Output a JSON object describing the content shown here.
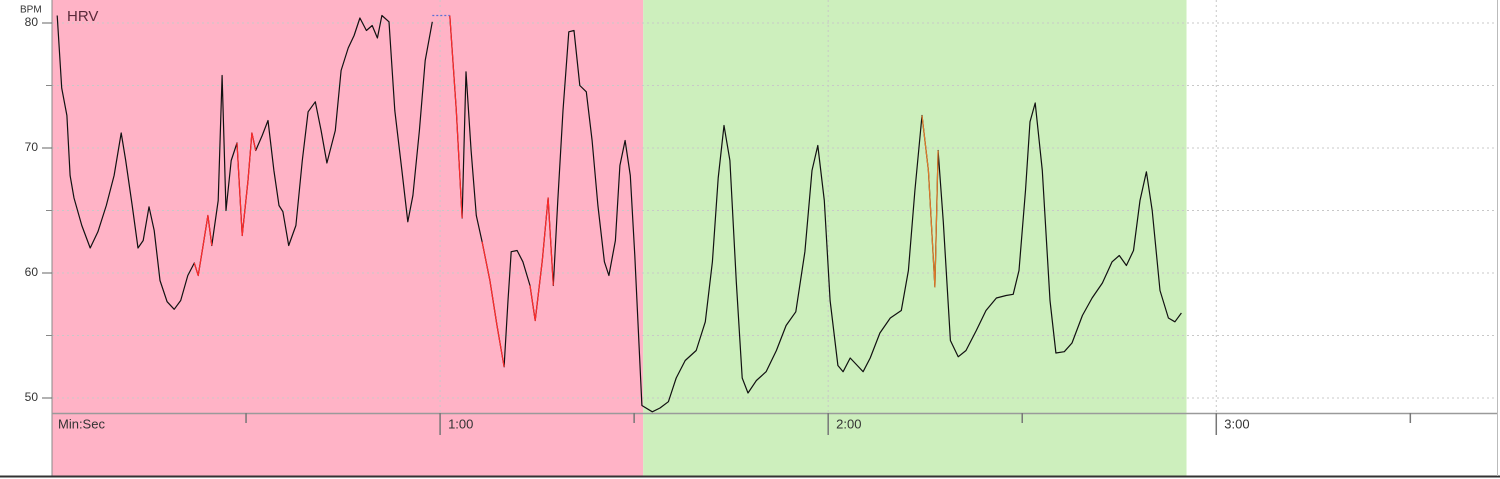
{
  "chart_data": {
    "type": "line",
    "title": "HRV",
    "y_label": "BPM",
    "x_label": "Min:Sec",
    "xlim": [
      0,
      223.4
    ],
    "ylim": [
      48.8,
      81.4
    ],
    "xticks": [
      {
        "value": 60,
        "label": "1:00"
      },
      {
        "value": 120,
        "label": "2:00"
      },
      {
        "value": 180,
        "label": "3:00"
      }
    ],
    "xticks_minor": [
      30,
      90,
      150,
      210
    ],
    "yticks": [
      50,
      60,
      70,
      80
    ],
    "ygrid": [
      50,
      55,
      60,
      65,
      70,
      75,
      80
    ],
    "grid": true,
    "regions": [
      {
        "start": 0,
        "end": 91.4,
        "color": "#ffb3c6"
      },
      {
        "start": 91.4,
        "end": 175.4,
        "color": "#cdefbd"
      }
    ],
    "series": [
      {
        "color": "#111111",
        "x": [
          0.8,
          1.5,
          2.3,
          2.8,
          3.4,
          4.6,
          5.9,
          7.1,
          8.4,
          9.6,
          10.7,
          11.4,
          12.4,
          13.3,
          14.1,
          15.0,
          15.8,
          16.7,
          17.8,
          18.9,
          19.9,
          21.0,
          22.0,
          22.6,
          23.3,
          24.1,
          24.7,
          25.7,
          26.3,
          26.9,
          27.7,
          28.6,
          29.4,
          30.3,
          30.9,
          31.5,
          32.5,
          33.4,
          34.3,
          35.1,
          35.7,
          36.6,
          37.7,
          38.7,
          39.6,
          40.7,
          41.6,
          42.5,
          43.8,
          44.7,
          45.8,
          46.7,
          47.6,
          48.6,
          49.5,
          50.3,
          51.0,
          52.1,
          53.0,
          54.1,
          55.0,
          55.8,
          56.8,
          57.7,
          58.8,
          60.2,
          61.5,
          62.5,
          63.4,
          64.0,
          64.8,
          65.6,
          66.5,
          67.7,
          68.8,
          69.9,
          70.5,
          71.0,
          71.9,
          72.8,
          73.9,
          74.7,
          75.8,
          76.7,
          77.5,
          78.2,
          79.0,
          79.9,
          80.7,
          81.6,
          82.6,
          83.5,
          84.4,
          85.4,
          86.1,
          87.1,
          87.8,
          88.6,
          89.4,
          90.1,
          91.2,
          92.8,
          94.0,
          95.3,
          96.5,
          97.9,
          99.6,
          101.0,
          102.1,
          103.0,
          103.9,
          104.8,
          105.8,
          106.7,
          107.6,
          108.9,
          110.4,
          112.0,
          113.5,
          115.0,
          116.4,
          117.5,
          118.4,
          119.4,
          120.3,
          121.5,
          122.3,
          123.4,
          124.5,
          125.4,
          126.5,
          128.0,
          129.6,
          131.3,
          132.4,
          133.4,
          134.5,
          135.5,
          136.5,
          137.0,
          137.8,
          138.9,
          140.1,
          141.3,
          142.9,
          144.4,
          146.0,
          147.5,
          148.6,
          149.5,
          150.5,
          151.2,
          152.0,
          153.1,
          154.3,
          155.2,
          156.5,
          157.7,
          159.3,
          160.8,
          162.4,
          163.9,
          165.0,
          166.1,
          167.2,
          168.2,
          169.2,
          170.1,
          171.3,
          172.6,
          173.6,
          174.6
        ],
        "values": [
          80.6,
          74.8,
          72.6,
          67.8,
          66.0,
          63.8,
          62.0,
          63.3,
          65.4,
          67.8,
          71.2,
          69.0,
          65.4,
          62.0,
          62.6,
          65.3,
          63.4,
          59.4,
          57.7,
          57.1,
          57.8,
          59.8,
          60.8,
          59.8,
          62.0,
          64.6,
          62.2,
          65.8,
          75.8,
          65.0,
          69.0,
          70.4,
          63.0,
          67.4,
          71.2,
          69.8,
          71.0,
          72.2,
          68.2,
          65.4,
          64.9,
          62.2,
          63.8,
          69.0,
          72.9,
          73.7,
          71.4,
          68.8,
          71.4,
          76.2,
          78.0,
          79.0,
          80.4,
          79.4,
          79.8,
          78.8,
          80.6,
          80.1,
          73.0,
          68.2,
          64.1,
          66.2,
          71.4,
          77.0,
          80.1,
          null,
          80.6,
          73.0,
          64.4,
          76.1,
          69.8,
          64.6,
          62.5,
          59.4,
          55.8,
          52.5,
          57.8,
          61.7,
          61.8,
          60.9,
          59.0,
          56.2,
          61.0,
          66.0,
          59.0,
          65.8,
          73.0,
          79.3,
          79.4,
          75.0,
          74.5,
          70.6,
          65.4,
          60.9,
          59.8,
          62.6,
          68.6,
          70.6,
          67.8,
          61.4,
          49.4,
          48.9,
          49.2,
          49.7,
          51.6,
          53.0,
          53.8,
          56.1,
          60.9,
          67.6,
          71.8,
          69.0,
          59.3,
          51.6,
          50.4,
          51.4,
          52.1,
          53.8,
          55.8,
          56.9,
          61.7,
          68.2,
          70.2,
          65.8,
          57.8,
          52.6,
          52.1,
          53.2,
          52.6,
          52.1,
          53.2,
          55.2,
          56.4,
          57.0,
          60.2,
          66.6,
          72.6,
          68.2,
          58.9,
          69.8,
          64.1,
          54.6,
          53.3,
          53.8,
          55.4,
          57.0,
          58.0,
          58.2,
          58.3,
          60.2,
          66.6,
          72.1,
          73.6,
          68.2,
          57.8,
          53.6,
          53.7,
          54.4,
          56.6,
          58.0,
          59.2,
          60.9,
          61.4,
          60.6,
          61.8,
          65.8,
          68.1,
          65.0,
          58.6,
          56.4,
          56.1,
          56.8
        ]
      },
      {
        "color": "#ff2a2a",
        "x": [
          22.0,
          22.6,
          23.3,
          24.1,
          24.7,
          25.0,
          28.6,
          29.4,
          30.3,
          30.9,
          31.5,
          32.0,
          61.5,
          62.5,
          63.4,
          63.7,
          66.5,
          67.7,
          68.8,
          69.9,
          70.2,
          73.9,
          74.7,
          75.8,
          76.7,
          77.5
        ],
        "values": [
          60.8,
          59.8,
          62.0,
          64.6,
          62.2,
          null,
          70.4,
          63.0,
          67.4,
          71.2,
          69.8,
          null,
          80.6,
          73.0,
          64.4,
          null,
          62.5,
          59.4,
          55.8,
          52.5,
          null,
          59.0,
          56.2,
          61.0,
          66.0,
          59.0
        ]
      },
      {
        "color": "#e07a2a",
        "x": [
          134.5,
          135.5,
          136.5,
          137.0
        ],
        "values": [
          72.6,
          68.2,
          58.9,
          69.8
        ]
      },
      {
        "color": "#5b6fd6",
        "dashed": true,
        "x": [
          58.8,
          61.5
        ],
        "values": [
          80.6,
          80.6
        ]
      }
    ]
  }
}
